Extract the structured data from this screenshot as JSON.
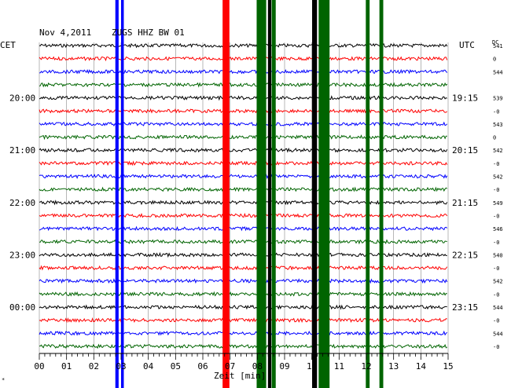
{
  "header": {
    "date": "Nov 4,2011",
    "station": "ZUGS HHZ BW 01",
    "left_zone": "CET",
    "right_zone": "UTC",
    "dc_label": "DC"
  },
  "colors": {
    "black": "#000000",
    "red": "#ff0000",
    "blue": "#0000ff",
    "green": "#006400",
    "grid": "#888888"
  },
  "chart_data": {
    "type": "line",
    "title": "Nov 4,2011   ZUGS HHZ BW 01",
    "xlabel": "Zeit [min]",
    "ylabel": "",
    "x_ticks": [
      "00",
      "01",
      "02",
      "03",
      "04",
      "05",
      "06",
      "07",
      "08",
      "09",
      "10",
      "11",
      "12",
      "13",
      "14",
      "15"
    ],
    "xlim": [
      0,
      15
    ],
    "left_time_labels": [
      {
        "row": 4,
        "text": "20:00"
      },
      {
        "row": 8,
        "text": "21:00"
      },
      {
        "row": 12,
        "text": "22:00"
      },
      {
        "row": 16,
        "text": "23:00"
      },
      {
        "row": 20,
        "text": "00:00"
      }
    ],
    "right_time_labels": [
      {
        "row": 4,
        "text": "19:15"
      },
      {
        "row": 8,
        "text": "20:15"
      },
      {
        "row": 12,
        "text": "21:15"
      },
      {
        "row": 16,
        "text": "22:15"
      },
      {
        "row": 20,
        "text": "23:15"
      }
    ],
    "dc_values": [
      {
        "row": 0,
        "text": "541"
      },
      {
        "row": 1,
        "text": "0"
      },
      {
        "row": 2,
        "text": "544"
      },
      {
        "row": 4,
        "text": "539"
      },
      {
        "row": 5,
        "text": "-0"
      },
      {
        "row": 6,
        "text": "543"
      },
      {
        "row": 7,
        "text": "0"
      },
      {
        "row": 8,
        "text": "542"
      },
      {
        "row": 9,
        "text": "-0"
      },
      {
        "row": 10,
        "text": "542"
      },
      {
        "row": 11,
        "text": "-0"
      },
      {
        "row": 12,
        "text": "549"
      },
      {
        "row": 13,
        "text": "-0"
      },
      {
        "row": 14,
        "text": "546"
      },
      {
        "row": 15,
        "text": "-0"
      },
      {
        "row": 16,
        "text": "540"
      },
      {
        "row": 17,
        "text": "-0"
      },
      {
        "row": 18,
        "text": "542"
      },
      {
        "row": 19,
        "text": "-0"
      },
      {
        "row": 20,
        "text": "544"
      },
      {
        "row": 21,
        "text": "-0"
      },
      {
        "row": 22,
        "text": "544"
      },
      {
        "row": 23,
        "text": "-0"
      }
    ],
    "trace_color_cycle": [
      "black",
      "red",
      "blue",
      "green"
    ],
    "trace_rows": 24,
    "events": [
      {
        "x": 2.85,
        "color": "blue",
        "from_row": 0,
        "to_row": 23,
        "width_min": 0.12
      },
      {
        "x": 3.05,
        "color": "blue",
        "from_row": 0,
        "to_row": 23,
        "width_min": 0.1
      },
      {
        "x": 6.85,
        "color": "red",
        "from_row": 0,
        "to_row": 23,
        "width_min": 0.25
      },
      {
        "x": 8.15,
        "color": "green",
        "from_row": 0,
        "to_row": 23,
        "width_min": 0.35
      },
      {
        "x": 8.45,
        "color": "black",
        "from_row": 0,
        "to_row": 23,
        "width_min": 0.12
      },
      {
        "x": 8.6,
        "color": "green",
        "from_row": 0,
        "to_row": 23,
        "width_min": 0.15
      },
      {
        "x": 10.1,
        "color": "black",
        "from_row": 0,
        "to_row": 23,
        "width_min": 0.18
      },
      {
        "x": 10.45,
        "color": "green",
        "from_row": 0,
        "to_row": 23,
        "width_min": 0.4
      },
      {
        "x": 12.05,
        "color": "green",
        "from_row": 0,
        "to_row": 23,
        "width_min": 0.14
      },
      {
        "x": 12.55,
        "color": "green",
        "from_row": 0,
        "to_row": 23,
        "width_min": 0.14
      }
    ]
  },
  "footnote": "*"
}
